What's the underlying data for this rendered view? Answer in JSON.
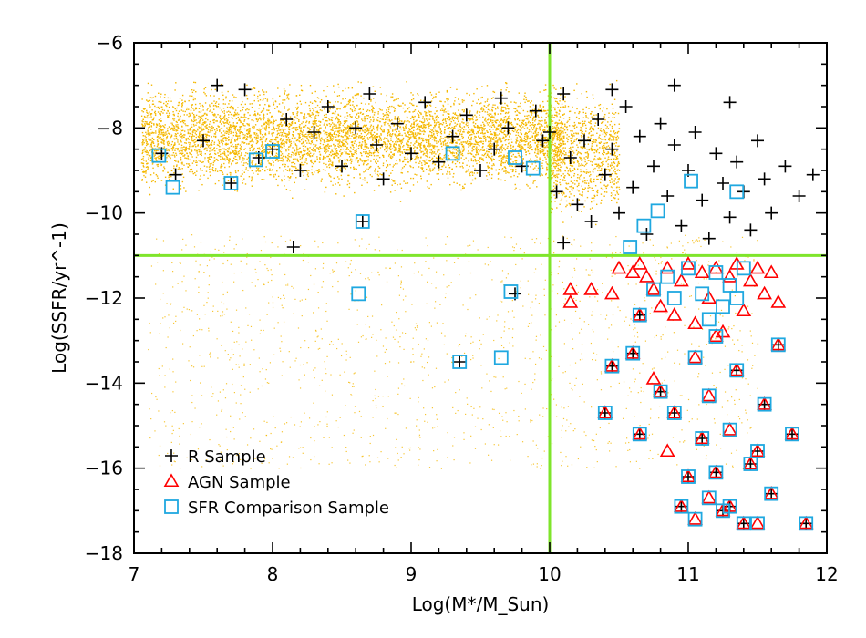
{
  "chart_data": {
    "type": "scatter",
    "title": "",
    "xlabel": "Log(M*/M_Sun)",
    "ylabel": "Log(SSFR/yr^-1)",
    "xlim": [
      7,
      12
    ],
    "ylim": [
      -18,
      -6
    ],
    "x_ticks": [
      7,
      8,
      9,
      10,
      11,
      12
    ],
    "y_ticks": [
      -18,
      -16,
      -14,
      -12,
      -10,
      -8,
      -6
    ],
    "grid": false,
    "legend_position": "bottom-left",
    "reference_lines": {
      "vertical_x": 10,
      "horizontal_y": -11,
      "color": "#7fe52b"
    },
    "background_density": {
      "color": "#f5b800",
      "description_regions": [
        {
          "x_range": [
            7.05,
            10.1
          ],
          "y_center": -8.2,
          "y_spread": 0.9
        },
        {
          "x_range": [
            7.05,
            11.5
          ],
          "y_center": -12.5,
          "y_spread": 2.5
        }
      ]
    },
    "series": [
      {
        "name": "R Sample",
        "marker": "plus",
        "color": "#000000",
        "points": [
          [
            7.2,
            -8.6
          ],
          [
            7.3,
            -9.1
          ],
          [
            7.5,
            -8.3
          ],
          [
            7.6,
            -7.0
          ],
          [
            7.7,
            -9.3
          ],
          [
            7.8,
            -7.1
          ],
          [
            7.9,
            -8.7
          ],
          [
            8.0,
            -8.5
          ],
          [
            8.1,
            -7.8
          ],
          [
            8.2,
            -9.0
          ],
          [
            8.3,
            -8.1
          ],
          [
            8.4,
            -7.5
          ],
          [
            8.5,
            -8.9
          ],
          [
            8.6,
            -8.0
          ],
          [
            8.7,
            -7.2
          ],
          [
            8.75,
            -8.4
          ],
          [
            8.8,
            -9.2
          ],
          [
            8.9,
            -7.9
          ],
          [
            9.0,
            -8.6
          ],
          [
            9.1,
            -7.4
          ],
          [
            9.2,
            -8.8
          ],
          [
            9.3,
            -8.2
          ],
          [
            9.4,
            -7.7
          ],
          [
            9.5,
            -9.0
          ],
          [
            9.6,
            -8.5
          ],
          [
            9.65,
            -7.3
          ],
          [
            9.7,
            -8.0
          ],
          [
            9.8,
            -8.9
          ],
          [
            9.9,
            -7.6
          ],
          [
            9.95,
            -8.3
          ],
          [
            10.0,
            -8.1
          ],
          [
            10.05,
            -9.5
          ],
          [
            10.1,
            -7.2
          ],
          [
            10.15,
            -8.7
          ],
          [
            10.2,
            -9.8
          ],
          [
            10.25,
            -8.3
          ],
          [
            10.3,
            -10.2
          ],
          [
            10.35,
            -7.8
          ],
          [
            10.4,
            -9.1
          ],
          [
            10.45,
            -8.5
          ],
          [
            10.5,
            -10.0
          ],
          [
            10.55,
            -7.5
          ],
          [
            10.6,
            -9.4
          ],
          [
            10.65,
            -8.2
          ],
          [
            10.7,
            -10.5
          ],
          [
            10.75,
            -8.9
          ],
          [
            10.8,
            -7.9
          ],
          [
            10.85,
            -9.6
          ],
          [
            10.9,
            -8.4
          ],
          [
            10.95,
            -10.3
          ],
          [
            11.0,
            -9.0
          ],
          [
            11.05,
            -8.1
          ],
          [
            11.1,
            -9.7
          ],
          [
            11.15,
            -10.6
          ],
          [
            11.2,
            -8.6
          ],
          [
            11.25,
            -9.3
          ],
          [
            11.3,
            -10.1
          ],
          [
            11.35,
            -8.8
          ],
          [
            11.4,
            -9.5
          ],
          [
            11.45,
            -10.4
          ],
          [
            11.5,
            -8.3
          ],
          [
            11.55,
            -9.2
          ],
          [
            11.6,
            -10.0
          ],
          [
            11.7,
            -8.9
          ],
          [
            11.8,
            -9.6
          ],
          [
            11.9,
            -9.1
          ],
          [
            10.1,
            -10.7
          ],
          [
            10.45,
            -7.1
          ],
          [
            10.9,
            -7.0
          ],
          [
            11.3,
            -7.4
          ],
          [
            8.15,
            -10.8
          ],
          [
            9.35,
            -13.5
          ],
          [
            8.65,
            -10.2
          ],
          [
            9.75,
            -11.9
          ],
          [
            10.65,
            -12.4
          ],
          [
            10.9,
            -14.7
          ],
          [
            11.1,
            -15.3
          ],
          [
            11.2,
            -16.1
          ],
          [
            11.4,
            -17.3
          ],
          [
            11.6,
            -16.6
          ],
          [
            11.85,
            -17.3
          ],
          [
            10.95,
            -16.9
          ],
          [
            11.3,
            -16.9
          ],
          [
            11.5,
            -15.6
          ],
          [
            11.65,
            -13.1
          ],
          [
            11.75,
            -15.2
          ],
          [
            10.45,
            -13.6
          ],
          [
            10.6,
            -13.3
          ],
          [
            10.8,
            -14.2
          ],
          [
            10.65,
            -15.2
          ],
          [
            10.4,
            -14.7
          ],
          [
            11.0,
            -16.2
          ],
          [
            11.25,
            -17.0
          ],
          [
            11.45,
            -15.9
          ],
          [
            11.55,
            -14.5
          ],
          [
            11.35,
            -13.7
          ]
        ]
      },
      {
        "name": "AGN Sample",
        "marker": "triangle",
        "color": "#ff0000",
        "points": [
          [
            10.15,
            -11.8
          ],
          [
            10.15,
            -12.1
          ],
          [
            10.3,
            -11.8
          ],
          [
            10.45,
            -11.9
          ],
          [
            10.5,
            -11.3
          ],
          [
            10.6,
            -11.4
          ],
          [
            10.65,
            -11.2
          ],
          [
            10.7,
            -11.5
          ],
          [
            10.75,
            -11.8
          ],
          [
            10.8,
            -12.2
          ],
          [
            10.85,
            -11.3
          ],
          [
            10.9,
            -12.4
          ],
          [
            10.95,
            -11.6
          ],
          [
            11.0,
            -11.2
          ],
          [
            11.05,
            -12.6
          ],
          [
            11.1,
            -11.4
          ],
          [
            11.15,
            -12.0
          ],
          [
            11.2,
            -11.3
          ],
          [
            11.25,
            -12.8
          ],
          [
            11.3,
            -11.5
          ],
          [
            11.35,
            -11.2
          ],
          [
            11.4,
            -12.3
          ],
          [
            11.45,
            -11.6
          ],
          [
            11.5,
            -11.3
          ],
          [
            11.55,
            -11.9
          ],
          [
            11.6,
            -11.4
          ],
          [
            11.65,
            -12.1
          ],
          [
            10.65,
            -12.4
          ],
          [
            10.45,
            -13.6
          ],
          [
            10.6,
            -13.3
          ],
          [
            10.8,
            -14.2
          ],
          [
            10.9,
            -14.7
          ],
          [
            10.65,
            -15.2
          ],
          [
            10.4,
            -14.7
          ],
          [
            11.0,
            -16.2
          ],
          [
            11.1,
            -15.3
          ],
          [
            11.2,
            -16.1
          ],
          [
            11.25,
            -17.0
          ],
          [
            11.3,
            -16.9
          ],
          [
            11.4,
            -17.3
          ],
          [
            11.45,
            -15.9
          ],
          [
            11.5,
            -15.6
          ],
          [
            11.55,
            -14.5
          ],
          [
            11.6,
            -16.6
          ],
          [
            11.65,
            -13.1
          ],
          [
            11.75,
            -15.2
          ],
          [
            11.85,
            -17.3
          ],
          [
            10.95,
            -16.9
          ],
          [
            11.35,
            -13.7
          ],
          [
            10.75,
            -13.9
          ],
          [
            11.05,
            -13.4
          ],
          [
            11.15,
            -14.3
          ],
          [
            11.2,
            -12.9
          ],
          [
            10.85,
            -15.6
          ],
          [
            11.3,
            -15.1
          ],
          [
            11.05,
            -17.2
          ],
          [
            11.5,
            -17.3
          ],
          [
            11.15,
            -16.7
          ]
        ]
      },
      {
        "name": "SFR Comparison Sample",
        "marker": "square",
        "color": "#1fa8e0",
        "points": [
          [
            7.18,
            -8.65
          ],
          [
            7.28,
            -9.4
          ],
          [
            7.7,
            -9.3
          ],
          [
            7.88,
            -8.75
          ],
          [
            8.0,
            -8.55
          ],
          [
            8.65,
            -10.2
          ],
          [
            9.3,
            -8.6
          ],
          [
            9.75,
            -8.7
          ],
          [
            9.88,
            -8.95
          ],
          [
            11.02,
            -9.25
          ],
          [
            11.35,
            -9.5
          ],
          [
            10.78,
            -9.95
          ],
          [
            10.68,
            -10.3
          ],
          [
            10.58,
            -10.8
          ],
          [
            8.62,
            -11.9
          ],
          [
            9.72,
            -11.85
          ],
          [
            9.35,
            -13.5
          ],
          [
            9.65,
            -13.4
          ],
          [
            10.65,
            -12.4
          ],
          [
            10.45,
            -13.6
          ],
          [
            10.6,
            -13.3
          ],
          [
            10.8,
            -14.2
          ],
          [
            10.9,
            -14.7
          ],
          [
            10.65,
            -15.2
          ],
          [
            10.4,
            -14.7
          ],
          [
            11.0,
            -16.2
          ],
          [
            11.1,
            -15.3
          ],
          [
            11.2,
            -16.1
          ],
          [
            11.25,
            -17.0
          ],
          [
            11.3,
            -16.9
          ],
          [
            11.4,
            -17.3
          ],
          [
            11.45,
            -15.9
          ],
          [
            11.5,
            -15.6
          ],
          [
            11.55,
            -14.5
          ],
          [
            11.6,
            -16.6
          ],
          [
            11.65,
            -13.1
          ],
          [
            11.75,
            -15.2
          ],
          [
            11.85,
            -17.3
          ],
          [
            10.95,
            -16.9
          ],
          [
            11.35,
            -13.7
          ],
          [
            11.05,
            -13.4
          ],
          [
            11.15,
            -14.3
          ],
          [
            11.2,
            -12.9
          ],
          [
            11.3,
            -15.1
          ],
          [
            11.05,
            -17.2
          ],
          [
            11.5,
            -17.3
          ],
          [
            11.15,
            -16.7
          ],
          [
            10.75,
            -11.8
          ],
          [
            10.9,
            -12.0
          ],
          [
            11.0,
            -11.3
          ],
          [
            11.1,
            -11.9
          ],
          [
            11.2,
            -11.4
          ],
          [
            11.3,
            -11.7
          ],
          [
            11.4,
            -11.3
          ],
          [
            11.25,
            -12.2
          ],
          [
            11.15,
            -12.5
          ],
          [
            10.85,
            -11.5
          ],
          [
            11.35,
            -12.0
          ]
        ]
      }
    ]
  }
}
